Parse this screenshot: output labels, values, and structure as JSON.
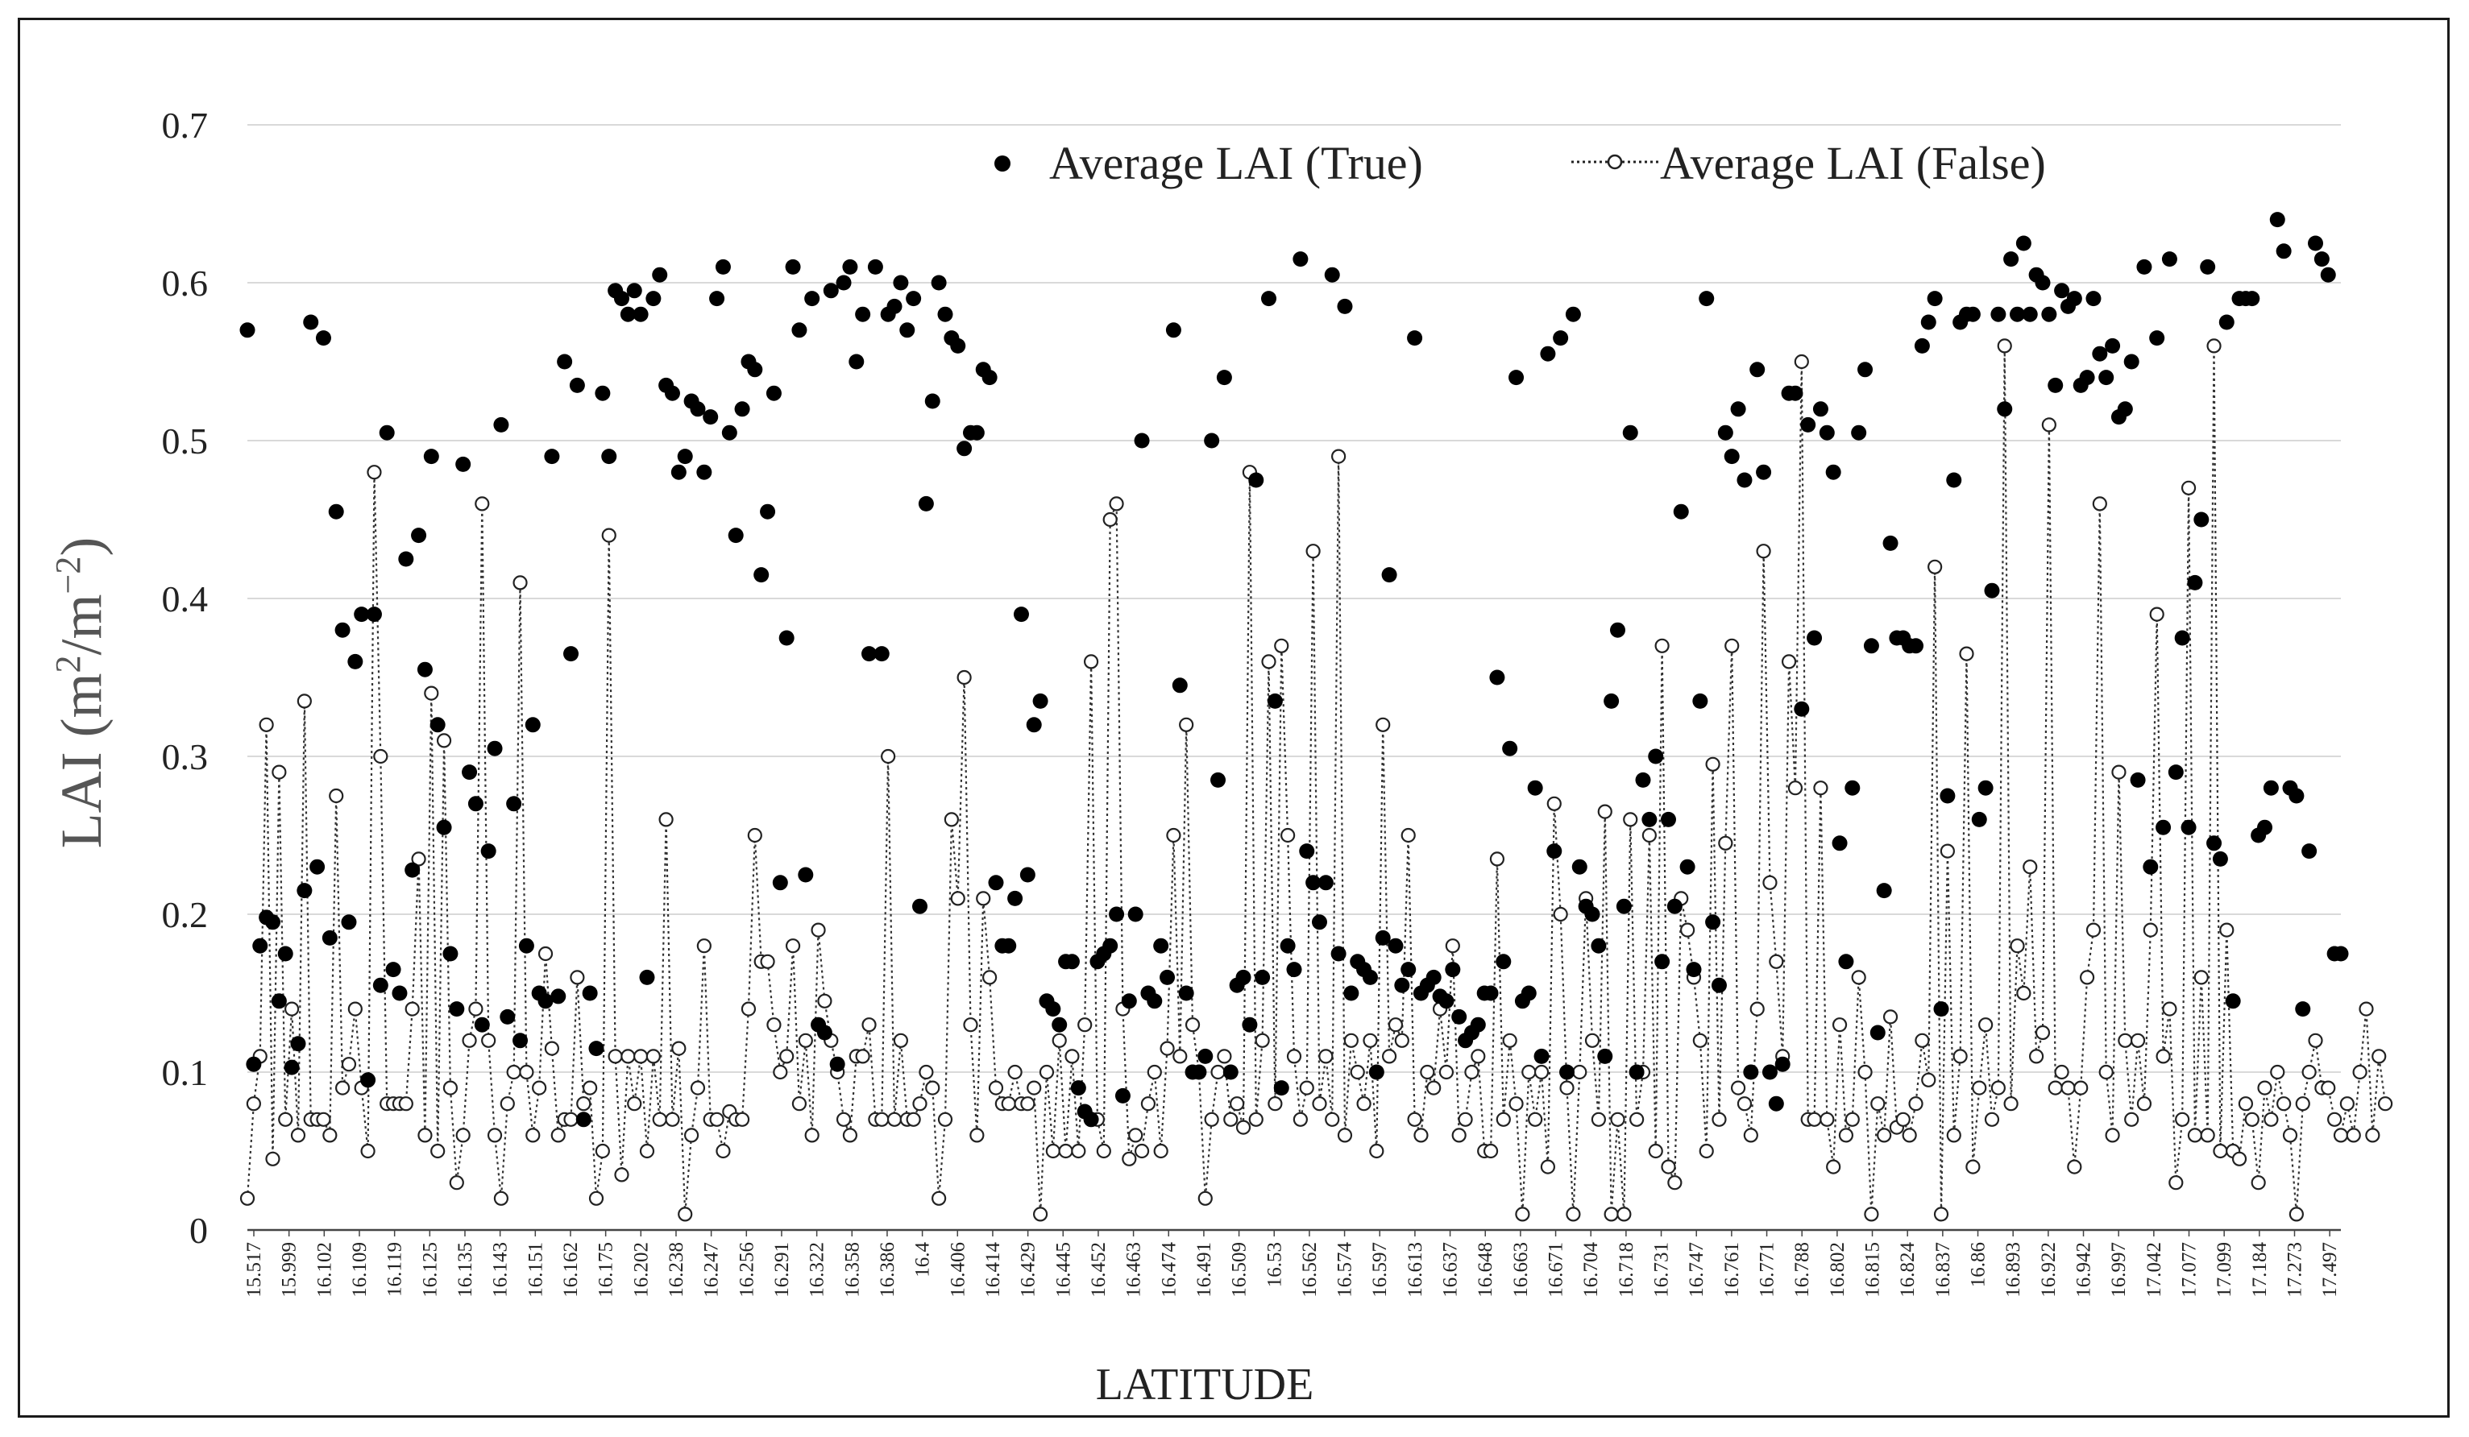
{
  "chart_data": {
    "type": "line",
    "title": "",
    "xlabel": "LATITUDE",
    "ylabel": "LAI (m2/m-2)",
    "ylabel_parts": {
      "base": "LAI (m",
      "sup1": "2",
      "mid": "/m",
      "sup2": "−2",
      "end": ")"
    },
    "ylim": [
      0,
      0.7
    ],
    "yticks": [
      "0",
      "0.1",
      "0.2",
      "0.3",
      "0.4",
      "0.5",
      "0.6",
      "0.7"
    ],
    "legend_position": "top",
    "x_tick_labels": [
      "15.517",
      "15.999",
      "16.102",
      "16.109",
      "16.119",
      "16.125",
      "16.135",
      "16.143",
      "16.151",
      "16.162",
      "16.175",
      "16.202",
      "16.238",
      "16.247",
      "16.256",
      "16.291",
      "16.322",
      "16.358",
      "16.386",
      "16.4",
      "16.406",
      "16.414",
      "16.429",
      "16.445",
      "16.452",
      "16.463",
      "16.474",
      "16.491",
      "16.509",
      "16.53",
      "16.562",
      "16.574",
      "16.597",
      "16.613",
      "16.637",
      "16.648",
      "16.663",
      "16.671",
      "16.704",
      "16.718",
      "16.731",
      "16.747",
      "16.761",
      "16.771",
      "16.788",
      "16.802",
      "16.815",
      "16.824",
      "16.837",
      "16.86",
      "16.893",
      "16.922",
      "16.942",
      "16.997",
      "17.042",
      "17.077",
      "17.099",
      "17.184",
      "17.273",
      "17.497"
    ],
    "series": [
      {
        "name": "Average LAI (True)",
        "style": "filled-markers",
        "values": [
          0.57,
          0.105,
          0.18,
          0.198,
          0.195,
          0.145,
          0.175,
          0.103,
          0.118,
          0.215,
          0.575,
          0.23,
          0.565,
          0.185,
          0.455,
          0.38,
          0.195,
          0.36,
          0.39,
          0.095,
          0.39,
          0.155,
          0.505,
          0.165,
          0.15,
          0.425,
          0.228,
          0.44,
          0.355,
          0.49,
          0.32,
          0.255,
          0.175,
          0.14,
          0.485,
          0.29,
          0.27,
          0.13,
          0.24,
          0.305,
          0.51,
          0.135,
          0.27,
          0.12,
          0.18,
          0.32,
          0.15,
          0.145,
          0.49,
          0.148,
          0.55,
          0.365,
          0.535,
          0.07,
          0.15,
          0.115,
          0.53,
          0.49,
          0.595,
          0.59,
          0.58,
          0.595,
          0.58,
          0.16,
          0.59,
          0.605,
          0.535,
          0.53,
          0.48,
          0.49,
          0.525,
          0.52,
          0.48,
          0.515,
          0.59,
          0.61,
          0.505,
          0.44,
          0.52,
          0.55,
          0.545,
          0.415,
          0.455,
          0.53,
          0.22,
          0.375,
          0.61,
          0.57,
          0.225,
          0.59,
          0.13,
          0.125,
          0.595,
          0.105,
          0.6,
          0.61,
          0.55,
          0.58,
          0.365,
          0.61,
          0.365,
          0.58,
          0.585,
          0.6,
          0.57,
          0.59,
          0.205,
          0.46,
          0.525,
          0.6,
          0.58,
          0.565,
          0.56,
          0.495,
          0.505,
          0.505,
          0.545,
          0.54,
          0.22,
          0.18,
          0.18,
          0.21,
          0.39,
          0.225,
          0.32,
          0.335,
          0.145,
          0.14,
          0.13,
          0.17,
          0.17,
          0.09,
          0.075,
          0.07,
          0.17,
          0.175,
          0.18,
          0.2,
          0.085,
          0.145,
          0.2,
          0.5,
          0.15,
          0.145,
          0.18,
          0.16,
          0.57,
          0.345,
          0.15,
          0.1,
          0.1,
          0.11,
          0.5,
          0.285,
          0.54,
          0.1,
          0.155,
          0.16,
          0.13,
          0.475,
          0.16,
          0.59,
          0.335,
          0.09,
          0.18,
          0.165,
          0.615,
          0.24,
          0.22,
          0.195,
          0.22,
          0.605,
          0.175,
          0.585,
          0.15,
          0.17,
          0.165,
          0.16,
          0.1,
          0.185,
          0.415,
          0.18,
          0.155,
          0.165,
          0.565,
          0.15,
          0.155,
          0.16,
          0.148,
          0.145,
          0.165,
          0.135,
          0.12,
          0.125,
          0.13,
          0.15,
          0.15,
          0.35,
          0.17,
          0.305,
          0.54,
          0.145,
          0.15,
          0.28,
          0.11,
          0.555,
          0.24,
          0.565,
          0.1,
          0.58,
          0.23,
          0.205,
          0.2,
          0.18,
          0.11,
          0.335,
          0.38,
          0.205,
          0.505,
          0.1,
          0.285,
          0.26,
          0.3,
          0.17,
          0.26,
          0.205,
          0.455,
          0.23,
          0.165,
          0.335,
          0.59,
          0.195,
          0.155,
          0.505,
          0.49,
          0.52,
          0.475,
          0.1,
          0.545,
          0.48,
          0.1,
          0.08,
          0.105,
          0.53,
          0.53,
          0.33,
          0.51,
          0.375,
          0.52,
          0.505,
          0.48,
          0.245,
          0.17,
          0.28,
          0.505,
          0.545,
          0.37,
          0.125,
          0.215,
          0.435,
          0.375,
          0.375,
          0.37,
          0.37,
          0.56,
          0.575,
          0.59,
          0.14,
          0.275,
          0.475,
          0.575,
          0.58,
          0.58,
          0.26,
          0.28,
          0.405,
          0.58,
          0.52,
          0.615,
          0.58,
          0.625,
          0.58,
          0.605,
          0.6,
          0.58,
          0.535,
          0.595,
          0.585,
          0.59,
          0.535,
          0.54,
          0.59,
          0.555,
          0.54,
          0.56,
          0.515,
          0.52,
          0.55,
          0.285,
          0.61,
          0.23,
          0.565,
          0.255,
          0.615,
          0.29,
          0.375,
          0.255,
          0.41,
          0.45,
          0.61,
          0.245,
          0.235,
          0.575,
          0.145,
          0.59,
          0.59,
          0.59,
          0.25,
          0.255,
          0.28,
          0.64,
          0.62,
          0.28,
          0.275,
          0.14,
          0.24,
          0.625,
          0.615,
          0.605,
          0.175,
          0.175
        ]
      },
      {
        "name": "Average LAI (False)",
        "style": "dotted-line-open-markers",
        "values": [
          0.02,
          0.08,
          0.11,
          0.32,
          0.045,
          0.29,
          0.07,
          0.14,
          0.06,
          0.335,
          0.07,
          0.07,
          0.07,
          0.06,
          0.275,
          0.09,
          0.105,
          0.14,
          0.09,
          0.05,
          0.48,
          0.3,
          0.08,
          0.08,
          0.08,
          0.08,
          0.14,
          0.235,
          0.06,
          0.34,
          0.05,
          0.31,
          0.09,
          0.03,
          0.06,
          0.12,
          0.14,
          0.46,
          0.12,
          0.06,
          0.02,
          0.08,
          0.1,
          0.41,
          0.1,
          0.06,
          0.09,
          0.175,
          0.115,
          0.06,
          0.07,
          0.07,
          0.16,
          0.08,
          0.09,
          0.02,
          0.05,
          0.44,
          0.11,
          0.035,
          0.11,
          0.08,
          0.11,
          0.05,
          0.11,
          0.07,
          0.26,
          0.07,
          0.115,
          0.01,
          0.06,
          0.09,
          0.18,
          0.07,
          0.07,
          0.05,
          0.075,
          0.07,
          0.07,
          0.14,
          0.25,
          0.17,
          0.17,
          0.13,
          0.1,
          0.11,
          0.18,
          0.08,
          0.12,
          0.06,
          0.19,
          0.145,
          0.12,
          0.1,
          0.07,
          0.06,
          0.11,
          0.11,
          0.13,
          0.07,
          0.07,
          0.3,
          0.07,
          0.12,
          0.07,
          0.07,
          0.08,
          0.1,
          0.09,
          0.02,
          0.07,
          0.26,
          0.21,
          0.35,
          0.13,
          0.06,
          0.21,
          0.16,
          0.09,
          0.08,
          0.08,
          0.1,
          0.08,
          0.08,
          0.09,
          0.01,
          0.1,
          0.05,
          0.12,
          0.05,
          0.11,
          0.05,
          0.13,
          0.36,
          0.07,
          0.05,
          0.45,
          0.46,
          0.14,
          0.045,
          0.06,
          0.05,
          0.08,
          0.1,
          0.05,
          0.115,
          0.25,
          0.11,
          0.32,
          0.13,
          0.1,
          0.02,
          0.07,
          0.1,
          0.11,
          0.07,
          0.08,
          0.065,
          0.48,
          0.07,
          0.12,
          0.36,
          0.08,
          0.37,
          0.25,
          0.11,
          0.07,
          0.09,
          0.43,
          0.08,
          0.11,
          0.07,
          0.49,
          0.06,
          0.12,
          0.1,
          0.08,
          0.12,
          0.05,
          0.32,
          0.11,
          0.13,
          0.12,
          0.25,
          0.07,
          0.06,
          0.1,
          0.09,
          0.14,
          0.1,
          0.18,
          0.06,
          0.07,
          0.1,
          0.11,
          0.05,
          0.05,
          0.235,
          0.07,
          0.12,
          0.08,
          0.01,
          0.1,
          0.07,
          0.1,
          0.04,
          0.27,
          0.2,
          0.09,
          0.01,
          0.1,
          0.21,
          0.12,
          0.07,
          0.265,
          0.01,
          0.07,
          0.01,
          0.26,
          0.07,
          0.1,
          0.25,
          0.05,
          0.37,
          0.04,
          0.03,
          0.21,
          0.19,
          0.16,
          0.12,
          0.05,
          0.295,
          0.07,
          0.245,
          0.37,
          0.09,
          0.08,
          0.06,
          0.14,
          0.43,
          0.22,
          0.17,
          0.11,
          0.36,
          0.28,
          0.55,
          0.07,
          0.07,
          0.28,
          0.07,
          0.04,
          0.13,
          0.06,
          0.07,
          0.16,
          0.1,
          0.01,
          0.08,
          0.06,
          0.135,
          0.065,
          0.07,
          0.06,
          0.08,
          0.12,
          0.095,
          0.42,
          0.01,
          0.24,
          0.06,
          0.11,
          0.365,
          0.04,
          0.09,
          0.13,
          0.07,
          0.09,
          0.56,
          0.08,
          0.18,
          0.15,
          0.23,
          0.11,
          0.125,
          0.51,
          0.09,
          0.1,
          0.09,
          0.04,
          0.09,
          0.16,
          0.19,
          0.46,
          0.1,
          0.06,
          0.29,
          0.12,
          0.07,
          0.12,
          0.08,
          0.19,
          0.39,
          0.11,
          0.14,
          0.03,
          0.07,
          0.47,
          0.06,
          0.16,
          0.06,
          0.56,
          0.05,
          0.19,
          0.05,
          0.045,
          0.08,
          0.07,
          0.03,
          0.09,
          0.07,
          0.1,
          0.08,
          0.06,
          0.01,
          0.08,
          0.1,
          0.12,
          0.09,
          0.09,
          0.07,
          0.06,
          0.08,
          0.06,
          0.1,
          0.14,
          0.06,
          0.11,
          0.08
        ]
      }
    ]
  }
}
